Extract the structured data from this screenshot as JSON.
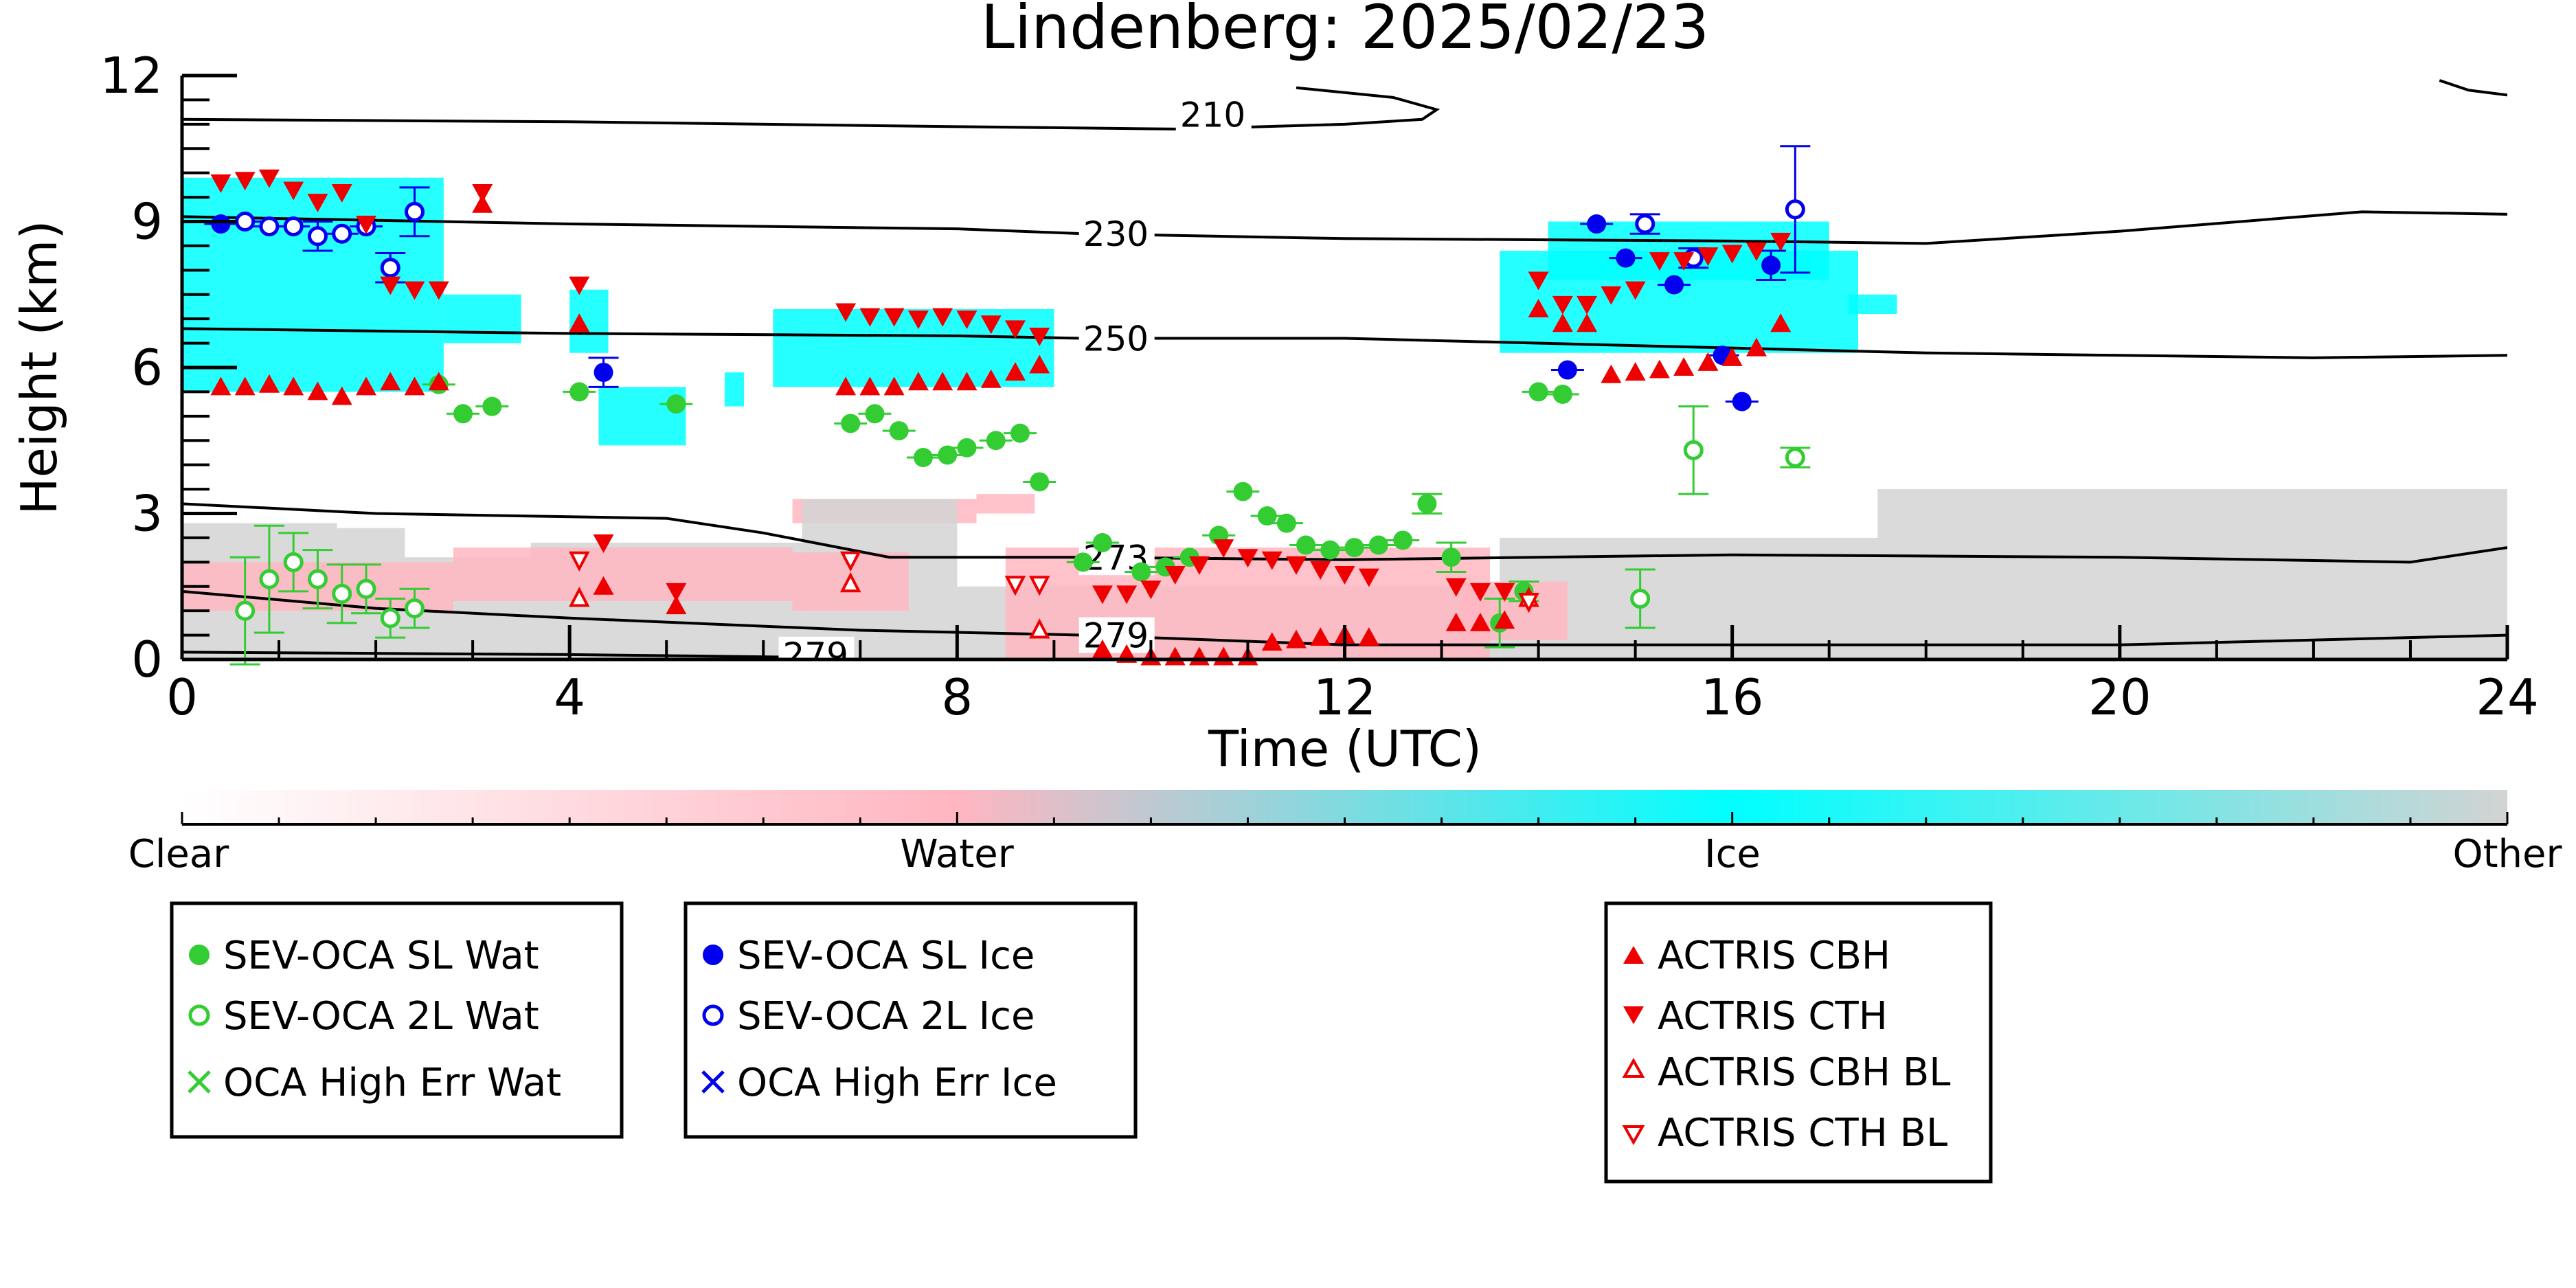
{
  "chart_data": {
    "type": "scatter",
    "title": "Lindenberg: 2025/02/23",
    "xlabel": "Time (UTC)",
    "ylabel": "Height (km)",
    "xlim": [
      0,
      24
    ],
    "ylim": [
      0,
      12
    ],
    "xticks": [
      "0",
      "4",
      "8",
      "12",
      "16",
      "20",
      "24"
    ],
    "yticks": [
      "0",
      "3",
      "6",
      "9",
      "12"
    ],
    "colorbar": {
      "labels": [
        "Clear",
        "Water",
        "Ice",
        "Other"
      ],
      "colors": [
        "#ffffff",
        "#ffb6c1",
        "#00ffff",
        "#d3d3d3"
      ]
    },
    "temperature_contours": [
      {
        "label": "210",
        "label_at": [
          10.3,
          11.2
        ],
        "points": [
          [
            0,
            11.1
          ],
          [
            4,
            11.05
          ],
          [
            8,
            10.95
          ],
          [
            10.3,
            10.9
          ],
          [
            12,
            11.0
          ],
          [
            12.8,
            11.1
          ],
          [
            12.95,
            11.3
          ],
          [
            12.5,
            11.55
          ],
          [
            11.5,
            11.75
          ]
        ],
        "extra": [
          [
            23.3,
            11.9
          ],
          [
            23.6,
            11.7
          ],
          [
            24,
            11.6
          ]
        ]
      },
      {
        "label": "230",
        "label_at": [
          9.3,
          8.75
        ],
        "points": [
          [
            0,
            9.1
          ],
          [
            4,
            8.95
          ],
          [
            8,
            8.85
          ],
          [
            9.3,
            8.75
          ],
          [
            12,
            8.65
          ],
          [
            16,
            8.6
          ],
          [
            18,
            8.55
          ],
          [
            20,
            8.8
          ],
          [
            22.5,
            9.2
          ],
          [
            24,
            9.15
          ]
        ]
      },
      {
        "label": "250",
        "label_at": [
          9.3,
          6.6
        ],
        "points": [
          [
            0,
            6.8
          ],
          [
            4,
            6.7
          ],
          [
            8,
            6.65
          ],
          [
            9.3,
            6.6
          ],
          [
            12,
            6.6
          ],
          [
            16,
            6.4
          ],
          [
            18,
            6.3
          ],
          [
            20,
            6.25
          ],
          [
            22,
            6.2
          ],
          [
            24,
            6.25
          ]
        ]
      },
      {
        "label": "273",
        "label_at": [
          9.3,
          2.1
        ],
        "points": [
          [
            0,
            3.2
          ],
          [
            2,
            3.0
          ],
          [
            5,
            2.9
          ],
          [
            6,
            2.6
          ],
          [
            7.3,
            2.1
          ],
          [
            9.3,
            2.1
          ],
          [
            12,
            2.05
          ],
          [
            16,
            2.15
          ],
          [
            20,
            2.1
          ],
          [
            23,
            2.0
          ],
          [
            24,
            2.3
          ]
        ]
      },
      {
        "label": "279",
        "label_at": [
          9.3,
          0.5
        ],
        "points": [
          [
            0,
            1.4
          ],
          [
            2,
            1.05
          ],
          [
            4,
            0.85
          ],
          [
            7,
            0.6
          ],
          [
            9.3,
            0.5
          ],
          [
            12,
            0.3
          ],
          [
            16,
            0.3
          ],
          [
            20,
            0.3
          ],
          [
            24,
            0.5
          ]
        ]
      },
      {
        "label": "279",
        "label_at": [
          6.2,
          0.1
        ],
        "points": [
          [
            0,
            0.15
          ],
          [
            4,
            0.1
          ],
          [
            6.2,
            0.05
          ]
        ]
      }
    ],
    "series": [
      {
        "name": "SEV-OCA SL Wat",
        "color": "#33cc33",
        "marker": "filled-circle",
        "points": [
          [
            2.65,
            5.65,
            0.1
          ],
          [
            2.9,
            5.05,
            0.1
          ],
          [
            3.2,
            5.2,
            0.1
          ],
          [
            4.1,
            5.5,
            0.1
          ],
          [
            5.1,
            5.25,
            0.1
          ],
          [
            6.9,
            4.85,
            0.1
          ],
          [
            7.15,
            5.05,
            0.1
          ],
          [
            7.4,
            4.7,
            0.1
          ],
          [
            7.65,
            4.15,
            0.1
          ],
          [
            7.9,
            4.2,
            0.1
          ],
          [
            8.1,
            4.35,
            0.1
          ],
          [
            8.4,
            4.5,
            0.1
          ],
          [
            8.65,
            4.65,
            0.1
          ],
          [
            8.85,
            3.65,
            0.1
          ],
          [
            9.3,
            2.0,
            0.1
          ],
          [
            9.5,
            2.4,
            0.1
          ],
          [
            9.9,
            1.8,
            0.1
          ],
          [
            10.15,
            1.9,
            0.1
          ],
          [
            10.4,
            2.1,
            0.1
          ],
          [
            10.7,
            2.55,
            0.1
          ],
          [
            10.95,
            3.45,
            0.1
          ],
          [
            11.2,
            2.95,
            0.1
          ],
          [
            11.4,
            2.8,
            0.1
          ],
          [
            11.6,
            2.35,
            0.1
          ],
          [
            11.85,
            2.25,
            0.1
          ],
          [
            12.1,
            2.3,
            0.1
          ],
          [
            12.35,
            2.35,
            0.1
          ],
          [
            12.6,
            2.45,
            0.1
          ],
          [
            12.85,
            3.2,
            0.2
          ],
          [
            13.1,
            2.1,
            0.3
          ],
          [
            13.6,
            0.75,
            0.5
          ],
          [
            13.85,
            1.4,
            0.2
          ],
          [
            14.0,
            5.5,
            0.1
          ],
          [
            14.25,
            5.45,
            0.1
          ]
        ]
      },
      {
        "name": "SEV-OCA 2L Wat",
        "color": "#33cc33",
        "marker": "open-circle",
        "points": [
          [
            0.65,
            1.0,
            1.1
          ],
          [
            0.9,
            1.65,
            1.1
          ],
          [
            1.15,
            2.0,
            0.6
          ],
          [
            1.4,
            1.65,
            0.6
          ],
          [
            1.65,
            1.35,
            0.6
          ],
          [
            1.9,
            1.45,
            0.5
          ],
          [
            2.15,
            0.85,
            0.4
          ],
          [
            2.4,
            1.05,
            0.4
          ],
          [
            15.05,
            1.25,
            0.6
          ],
          [
            15.6,
            4.3,
            0.9
          ],
          [
            16.65,
            4.15,
            0.2
          ]
        ]
      },
      {
        "name": "OCA High Err Wat",
        "color": "#33cc33",
        "marker": "x",
        "points": []
      },
      {
        "name": "SEV-OCA SL Ice",
        "color": "#0000ee",
        "marker": "filled-circle",
        "points": [
          [
            0.4,
            8.95,
            0.1
          ],
          [
            4.35,
            5.9,
            0.3
          ],
          [
            14.3,
            5.95,
            0.1
          ],
          [
            14.6,
            8.95,
            0.1
          ],
          [
            14.9,
            8.25,
            0.1
          ],
          [
            15.4,
            7.7,
            0.1
          ],
          [
            15.9,
            6.25,
            0.1
          ],
          [
            16.1,
            5.3,
            0.1
          ],
          [
            16.4,
            8.1,
            0.3
          ]
        ]
      },
      {
        "name": "SEV-OCA 2L Ice",
        "color": "#0000ee",
        "marker": "open-circle",
        "points": [
          [
            0.65,
            9.0,
            0.1
          ],
          [
            0.9,
            8.9,
            0.1
          ],
          [
            1.15,
            8.9,
            0.1
          ],
          [
            1.4,
            8.7,
            0.3
          ],
          [
            1.65,
            8.75,
            0.1
          ],
          [
            1.9,
            8.9,
            0.1
          ],
          [
            2.15,
            8.05,
            0.3
          ],
          [
            2.4,
            9.2,
            0.5
          ],
          [
            15.1,
            8.95,
            0.2
          ],
          [
            15.6,
            8.25,
            0.2
          ],
          [
            16.65,
            9.25,
            1.3
          ]
        ]
      },
      {
        "name": "OCA High Err Ice",
        "color": "#0000ee",
        "marker": "x",
        "points": []
      },
      {
        "name": "ACTRIS CBH",
        "color": "#ee0000",
        "marker": "triangle-up",
        "points": [
          [
            0.4,
            5.6
          ],
          [
            0.65,
            5.6
          ],
          [
            0.9,
            5.65
          ],
          [
            1.15,
            5.6
          ],
          [
            1.4,
            5.5
          ],
          [
            1.65,
            5.4
          ],
          [
            1.9,
            5.6
          ],
          [
            2.15,
            5.7
          ],
          [
            2.4,
            5.6
          ],
          [
            2.65,
            5.7
          ],
          [
            3.1,
            9.35
          ],
          [
            4.1,
            6.9
          ],
          [
            4.35,
            1.5
          ],
          [
            5.1,
            1.1
          ],
          [
            6.85,
            5.6
          ],
          [
            7.1,
            5.6
          ],
          [
            7.35,
            5.6
          ],
          [
            7.6,
            5.7
          ],
          [
            7.85,
            5.7
          ],
          [
            8.1,
            5.7
          ],
          [
            8.35,
            5.75
          ],
          [
            8.6,
            5.9
          ],
          [
            8.85,
            6.05
          ],
          [
            9.5,
            0.2
          ],
          [
            9.75,
            0.1
          ],
          [
            10.0,
            0.05
          ],
          [
            10.25,
            0.05
          ],
          [
            10.5,
            0.05
          ],
          [
            10.75,
            0.05
          ],
          [
            11.0,
            0.05
          ],
          [
            11.25,
            0.35
          ],
          [
            11.5,
            0.4
          ],
          [
            11.75,
            0.45
          ],
          [
            12.0,
            0.5
          ],
          [
            12.25,
            0.45
          ],
          [
            13.15,
            0.75
          ],
          [
            13.4,
            0.75
          ],
          [
            13.65,
            0.8
          ],
          [
            14.0,
            7.2
          ],
          [
            14.25,
            6.9
          ],
          [
            14.5,
            6.9
          ],
          [
            14.75,
            5.85
          ],
          [
            15.0,
            5.9
          ],
          [
            15.25,
            5.95
          ],
          [
            15.5,
            6.0
          ],
          [
            15.75,
            6.1
          ],
          [
            16.0,
            6.2
          ],
          [
            16.25,
            6.4
          ],
          [
            16.5,
            6.9
          ]
        ]
      },
      {
        "name": "ACTRIS CTH",
        "color": "#ee0000",
        "marker": "triangle-down",
        "points": [
          [
            0.4,
            9.8
          ],
          [
            0.65,
            9.85
          ],
          [
            0.9,
            9.9
          ],
          [
            1.15,
            9.65
          ],
          [
            1.4,
            9.4
          ],
          [
            1.65,
            9.6
          ],
          [
            1.9,
            8.95
          ],
          [
            2.15,
            7.7
          ],
          [
            2.4,
            7.6
          ],
          [
            2.65,
            7.6
          ],
          [
            3.1,
            9.6
          ],
          [
            4.1,
            7.7
          ],
          [
            4.35,
            2.4
          ],
          [
            5.1,
            1.4
          ],
          [
            6.85,
            7.15
          ],
          [
            7.1,
            7.05
          ],
          [
            7.35,
            7.05
          ],
          [
            7.6,
            7.0
          ],
          [
            7.85,
            7.05
          ],
          [
            8.1,
            7.0
          ],
          [
            8.35,
            6.9
          ],
          [
            8.6,
            6.8
          ],
          [
            8.85,
            6.65
          ],
          [
            9.5,
            1.35
          ],
          [
            9.75,
            1.35
          ],
          [
            10.0,
            1.45
          ],
          [
            10.25,
            1.75
          ],
          [
            10.5,
            1.95
          ],
          [
            10.75,
            2.3
          ],
          [
            11.0,
            2.1
          ],
          [
            11.25,
            2.05
          ],
          [
            11.5,
            1.95
          ],
          [
            11.75,
            1.85
          ],
          [
            12.0,
            1.75
          ],
          [
            12.25,
            1.7
          ],
          [
            13.15,
            1.5
          ],
          [
            13.4,
            1.4
          ],
          [
            13.65,
            1.4
          ],
          [
            14.0,
            7.8
          ],
          [
            14.25,
            7.3
          ],
          [
            14.5,
            7.3
          ],
          [
            14.75,
            7.5
          ],
          [
            15.0,
            7.6
          ],
          [
            15.25,
            8.2
          ],
          [
            15.5,
            8.2
          ],
          [
            15.75,
            8.3
          ],
          [
            16.0,
            8.35
          ],
          [
            16.25,
            8.4
          ],
          [
            16.5,
            8.6
          ]
        ]
      },
      {
        "name": "ACTRIS CBH BL",
        "color": "#ee0000",
        "marker": "open-triangle-up",
        "points": [
          [
            4.1,
            1.25
          ],
          [
            6.9,
            1.55
          ],
          [
            8.85,
            0.6
          ],
          [
            13.9,
            1.25
          ]
        ]
      },
      {
        "name": "ACTRIS CTH BL",
        "color": "#ee0000",
        "marker": "open-triangle-down",
        "points": [
          [
            4.1,
            2.05
          ],
          [
            6.9,
            2.05
          ],
          [
            8.6,
            1.55
          ],
          [
            8.85,
            1.55
          ],
          [
            13.9,
            1.2
          ]
        ]
      }
    ]
  },
  "legends": {
    "water": [
      "SEV-OCA SL Wat",
      "SEV-OCA 2L Wat",
      "OCA High Err Wat"
    ],
    "ice": [
      "SEV-OCA SL Ice",
      "SEV-OCA 2L Ice",
      "OCA High Err Ice"
    ],
    "actris": [
      "ACTRIS CBH",
      "ACTRIS CTH",
      "ACTRIS CBH BL",
      "ACTRIS CTH BL"
    ]
  }
}
